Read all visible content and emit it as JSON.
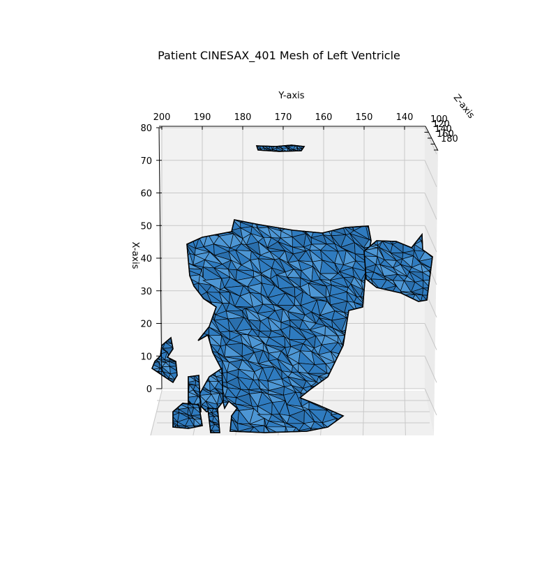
{
  "chart_data": {
    "type": "surface3d",
    "title": "Patient CINESAX_401 Mesh of Left Ventricle",
    "xlabel": "X-axis",
    "ylabel": "Y-axis",
    "zlabel": "Z-axis",
    "x_ticks": [
      "0",
      "10",
      "20",
      "30",
      "40",
      "50",
      "60",
      "70",
      "80"
    ],
    "y_ticks": [
      "200",
      "190",
      "180",
      "170",
      "160",
      "150",
      "140"
    ],
    "z_ticks": [
      "100",
      "120",
      "140",
      "160",
      "180"
    ],
    "xlim": [
      0,
      80
    ],
    "ylim": [
      200,
      135
    ],
    "zlim": [
      100,
      180
    ],
    "grid": true,
    "colors": {
      "face": "#2f7bbf",
      "face_light": "#4d96d4",
      "edge": "#000000",
      "pane": "#f2f2f2",
      "grid": "#c8c8c8"
    },
    "mesh_regions": [
      {
        "name": "main-body",
        "x_range": [
          0,
          47
        ],
        "y_range": [
          190,
          155
        ]
      },
      {
        "name": "right-lobe",
        "x_range": [
          28,
          43
        ],
        "y_range": [
          155,
          136
        ]
      },
      {
        "name": "left-fragment",
        "x_range": [
          5,
          15
        ],
        "y_range": [
          201,
          197
        ]
      },
      {
        "name": "top-fragment",
        "x_range": [
          74,
          76
        ],
        "y_range": [
          176,
          163
        ]
      }
    ]
  }
}
